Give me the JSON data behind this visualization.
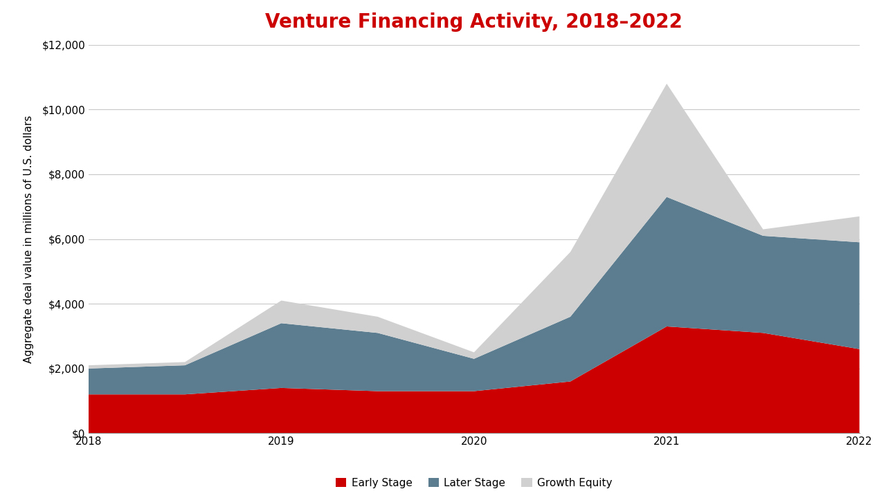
{
  "title": "Venture Financing Activity, 2018–2022",
  "xlabel": "",
  "ylabel": "Aggregate deal value in millions of U.S. dollars",
  "x": [
    2018,
    2018.5,
    2019,
    2019.5,
    2020,
    2020.5,
    2021,
    2021.5,
    2022
  ],
  "early_stage": [
    1200,
    1200,
    1400,
    1300,
    1300,
    1600,
    3300,
    3100,
    2600
  ],
  "later_stage": [
    800,
    900,
    2000,
    1800,
    1000,
    2000,
    4000,
    3000,
    3300
  ],
  "growth_equity": [
    100,
    100,
    700,
    500,
    200,
    2000,
    3500,
    200,
    800
  ],
  "early_color": "#cc0000",
  "later_color": "#5b7d8f",
  "growth_color": "#d0d0d0",
  "ylim": [
    0,
    12000
  ],
  "yticks": [
    0,
    2000,
    4000,
    6000,
    8000,
    10000,
    12000
  ],
  "xticks": [
    2018,
    2019,
    2020,
    2021,
    2022
  ],
  "title_color": "#cc0000",
  "title_fontsize": 20,
  "axis_fontsize": 11,
  "legend_labels": [
    "Early Stage",
    "Later Stage",
    "Growth Equity"
  ],
  "background_color": "#ffffff",
  "grid_color": "#c8c8c8"
}
